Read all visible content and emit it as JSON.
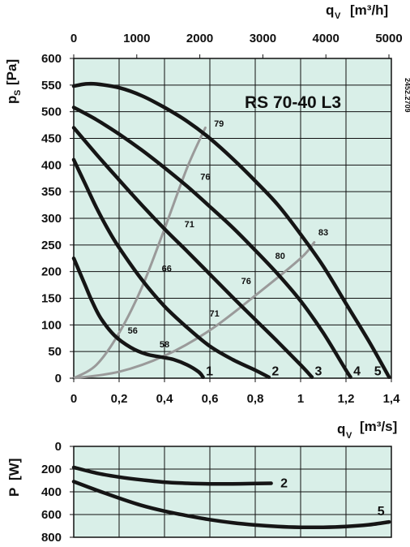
{
  "figure": {
    "model": "RS 70-40 L3",
    "code": "2452.2709"
  },
  "chart_data": [
    {
      "type": "line",
      "name": "pressure",
      "xlabel_main": "q",
      "xlabel_sub": "V",
      "xlabel_unit": "[m³/s]",
      "x2label_main": "q",
      "x2label_sub": "V",
      "x2label_unit": "[m³/h]",
      "ylabel_main": "p",
      "ylabel_sub": "S",
      "ylabel_unit": "[Pa]",
      "xlim": [
        0,
        1.4
      ],
      "ylim": [
        0,
        600
      ],
      "x_ticks": [
        0,
        0.2,
        0.4,
        0.6,
        0.8,
        1.0,
        1.2,
        1.4
      ],
      "x_tick_labels": [
        "0",
        "0,2",
        "0,4",
        "0,6",
        "0,8",
        "1",
        "1,2",
        "1,4"
      ],
      "x2_ticks": [
        0,
        1000,
        2000,
        3000,
        4000,
        5000
      ],
      "x2_tick_labels": [
        "0",
        "1000",
        "2000",
        "3000",
        "4000",
        "5000"
      ],
      "y_ticks": [
        0,
        50,
        100,
        150,
        200,
        250,
        300,
        350,
        400,
        450,
        500,
        550,
        600
      ],
      "y_tick_labels": [
        "0",
        "50",
        "100",
        "150",
        "200",
        "250",
        "300",
        "350",
        "400",
        "450",
        "500",
        "550",
        "600"
      ],
      "grid": true,
      "series": [
        {
          "name": "1",
          "x": [
            0,
            0.02,
            0.05,
            0.08,
            0.12,
            0.18,
            0.25,
            0.32,
            0.38,
            0.44,
            0.5,
            0.55,
            0.57
          ],
          "y": [
            225,
            205,
            175,
            145,
            112,
            80,
            58,
            45,
            40,
            35,
            25,
            12,
            2
          ]
        },
        {
          "name": "2",
          "x": [
            0,
            0.05,
            0.1,
            0.15,
            0.2,
            0.3,
            0.4,
            0.5,
            0.6,
            0.7,
            0.8,
            0.86
          ],
          "y": [
            410,
            365,
            320,
            280,
            245,
            185,
            135,
            95,
            60,
            35,
            15,
            2
          ]
        },
        {
          "name": "3",
          "x": [
            0,
            0.1,
            0.2,
            0.3,
            0.4,
            0.5,
            0.6,
            0.7,
            0.8,
            0.9,
            1.0,
            1.05
          ],
          "y": [
            470,
            420,
            372,
            325,
            280,
            238,
            195,
            152,
            110,
            68,
            25,
            2
          ]
        },
        {
          "name": "4",
          "x": [
            0,
            0.1,
            0.2,
            0.3,
            0.4,
            0.5,
            0.6,
            0.7,
            0.8,
            0.9,
            1.0,
            1.1,
            1.2,
            1.22
          ],
          "y": [
            508,
            485,
            458,
            428,
            395,
            360,
            322,
            283,
            240,
            195,
            145,
            85,
            15,
            2
          ]
        },
        {
          "name": "5",
          "x": [
            0,
            0.05,
            0.1,
            0.2,
            0.3,
            0.4,
            0.5,
            0.6,
            0.7,
            0.8,
            0.9,
            1.0,
            1.1,
            1.2,
            1.3,
            1.39
          ],
          "y": [
            548,
            552,
            552,
            545,
            530,
            508,
            482,
            450,
            412,
            370,
            325,
            270,
            210,
            140,
            70,
            2
          ]
        }
      ],
      "efficiency_lines": [
        {
          "x": [
            0,
            0.1,
            0.2,
            0.3,
            0.4,
            0.5,
            0.58
          ],
          "y": [
            0,
            25,
            85,
            170,
            280,
            395,
            470
          ]
        },
        {
          "x": [
            0,
            0.2,
            0.4,
            0.6,
            0.8,
            1.0,
            1.06
          ],
          "y": [
            0,
            12,
            42,
            90,
            155,
            225,
            255
          ]
        }
      ],
      "efficiency_labels": [
        {
          "text": "79",
          "x": 0.64,
          "y": 472
        },
        {
          "text": "76",
          "x": 0.58,
          "y": 372
        },
        {
          "text": "71",
          "x": 0.51,
          "y": 283
        },
        {
          "text": "66",
          "x": 0.41,
          "y": 200
        },
        {
          "text": "56",
          "x": 0.26,
          "y": 84
        },
        {
          "text": "58",
          "x": 0.4,
          "y": 58
        },
        {
          "text": "83",
          "x": 1.1,
          "y": 268
        },
        {
          "text": "80",
          "x": 0.91,
          "y": 224
        },
        {
          "text": "76",
          "x": 0.76,
          "y": 177
        },
        {
          "text": "71",
          "x": 0.62,
          "y": 116
        }
      ]
    },
    {
      "type": "line",
      "name": "power",
      "ylabel_main": "P",
      "ylabel_unit": "[W]",
      "xlim": [
        0,
        1.4
      ],
      "ylim": [
        800,
        0
      ],
      "y_ticks": [
        0,
        200,
        400,
        600,
        800
      ],
      "y_tick_labels": [
        "0",
        "200",
        "400",
        "600",
        "800"
      ],
      "grid": true,
      "series": [
        {
          "name": "2",
          "x": [
            0,
            0.1,
            0.2,
            0.3,
            0.4,
            0.5,
            0.6,
            0.7,
            0.8,
            0.87
          ],
          "y": [
            185,
            235,
            270,
            295,
            315,
            325,
            330,
            330,
            327,
            325
          ]
        },
        {
          "name": "5",
          "x": [
            0,
            0.1,
            0.2,
            0.3,
            0.4,
            0.5,
            0.6,
            0.7,
            0.8,
            0.9,
            1.0,
            1.1,
            1.2,
            1.3,
            1.39
          ],
          "y": [
            310,
            385,
            455,
            520,
            570,
            610,
            645,
            672,
            692,
            705,
            712,
            712,
            705,
            690,
            665
          ]
        }
      ]
    }
  ]
}
